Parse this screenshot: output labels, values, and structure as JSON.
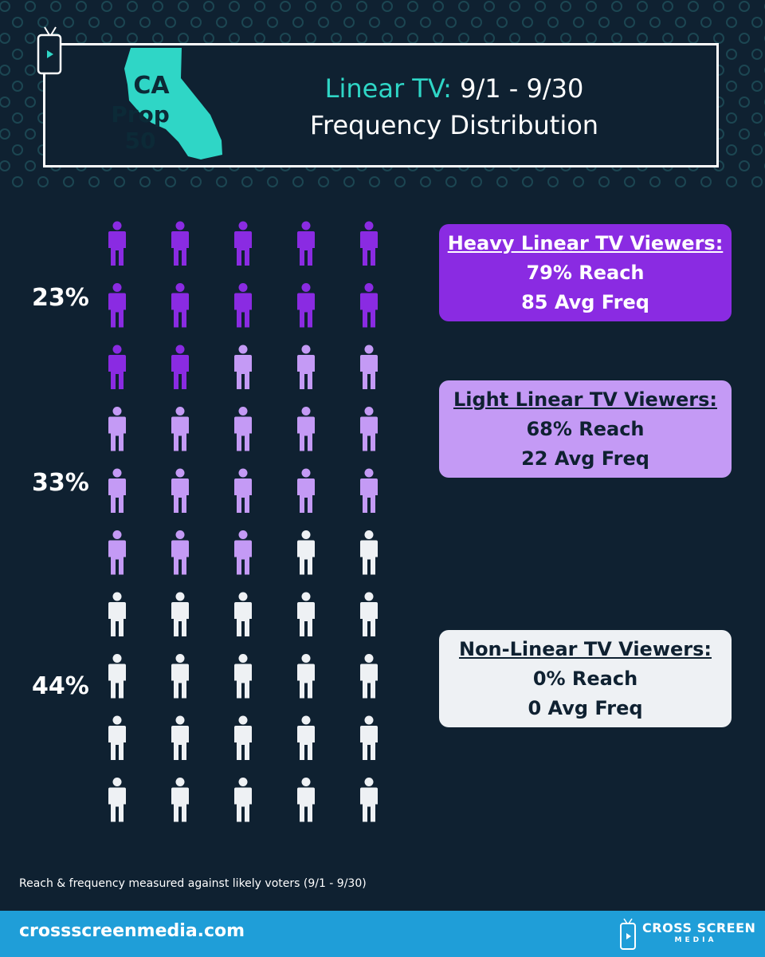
{
  "header": {
    "ca_line_1": "CA",
    "ca_line_2": "Prop 50",
    "title_label": "Linear TV:",
    "title_dates": "9/1 - 9/30",
    "subtitle": "Frequency Distribution"
  },
  "colors": {
    "background": "#0f2131",
    "accent_teal": "#2fd6c6",
    "heavy": "#8a2be2",
    "light": "#c49af5",
    "non": "#eef1f4",
    "footer": "#1f9ed8"
  },
  "chart_data": {
    "type": "pictogram",
    "icon": "person-icon",
    "columns": 5,
    "total_icons": 50,
    "segments": [
      {
        "label": "23%",
        "percent": 23,
        "count": 12,
        "color": "#8a2be2"
      },
      {
        "label": "33%",
        "percent": 33,
        "count": 16,
        "color": "#c49af5"
      },
      {
        "label": "44%",
        "percent": 44,
        "count": 22,
        "color": "#eef1f4"
      }
    ]
  },
  "boxes": [
    {
      "title": "Heavy Linear TV Viewers:",
      "reach": "79% Reach",
      "freq": "85 Avg Freq"
    },
    {
      "title": "Light Linear TV Viewers:",
      "reach": "68% Reach",
      "freq": "22 Avg Freq"
    },
    {
      "title": "Non-Linear TV Viewers:",
      "reach": "0% Reach",
      "freq": "0 Avg Freq"
    }
  ],
  "footnote": "Reach & frequency measured against likely voters (9/1 - 9/30)",
  "footer": {
    "url": "crossscreenmedia.com",
    "logo_line_1": "CROSS SCREEN",
    "logo_line_2": "MEDIA"
  }
}
